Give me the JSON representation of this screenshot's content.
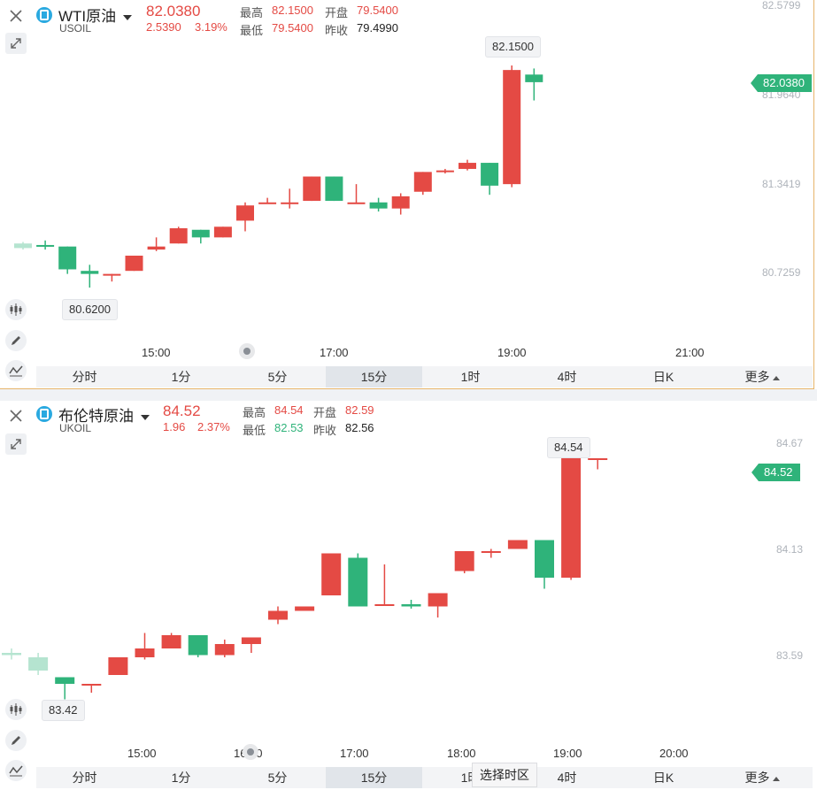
{
  "colors": {
    "up": "#e44a44",
    "down": "#2fb37a",
    "accent": "#2aa9e0"
  },
  "panels": [
    {
      "name": "WTI原油",
      "symbol": "USOIL",
      "price": "82.0380",
      "change": "2.5390",
      "change_pct": "3.19%",
      "stats": {
        "high_label": "最高",
        "high": "82.1500",
        "open_label": "开盘",
        "open": "79.5400",
        "low_label": "最低",
        "low": "79.5400",
        "prev_label": "昨收",
        "prev": "79.4990"
      },
      "y_ticks": [
        "82.5799",
        "81.9640",
        "81.3419",
        "80.7259"
      ],
      "x_ticks": [
        "15:00",
        "17:00",
        "19:00",
        "21:00"
      ],
      "current_badge": "82.0380",
      "max_callout": "82.1500",
      "min_callout": "80.6200",
      "chart_data": {
        "type": "candlestick",
        "y_range": [
          80.4,
          82.58
        ],
        "candles": [
          {
            "o": 80.98,
            "h": 80.99,
            "l": 80.94,
            "c": 80.95,
            "faded": true
          },
          {
            "o": 80.97,
            "h": 81.0,
            "l": 80.94,
            "c": 80.96
          },
          {
            "o": 80.96,
            "h": 80.96,
            "l": 80.78,
            "c": 80.81
          },
          {
            "o": 80.8,
            "h": 80.84,
            "l": 80.69,
            "c": 80.78
          },
          {
            "o": 80.78,
            "h": 80.78,
            "l": 80.73,
            "c": 80.78
          },
          {
            "o": 80.8,
            "h": 80.9,
            "l": 80.8,
            "c": 80.9
          },
          {
            "o": 80.94,
            "h": 81.02,
            "l": 80.93,
            "c": 80.96
          },
          {
            "o": 80.98,
            "h": 81.09,
            "l": 80.98,
            "c": 81.08
          },
          {
            "o": 81.07,
            "h": 81.07,
            "l": 80.98,
            "c": 81.02
          },
          {
            "o": 81.02,
            "h": 81.09,
            "l": 81.02,
            "c": 81.09
          },
          {
            "o": 81.13,
            "h": 81.25,
            "l": 81.06,
            "c": 81.23
          },
          {
            "o": 81.24,
            "h": 81.28,
            "l": 81.24,
            "c": 81.25
          },
          {
            "o": 81.25,
            "h": 81.34,
            "l": 81.21,
            "c": 81.25
          },
          {
            "o": 81.26,
            "h": 81.42,
            "l": 81.26,
            "c": 81.42
          },
          {
            "o": 81.42,
            "h": 81.42,
            "l": 81.26,
            "c": 81.26
          },
          {
            "o": 81.25,
            "h": 81.37,
            "l": 81.24,
            "c": 81.25
          },
          {
            "o": 81.25,
            "h": 81.28,
            "l": 81.19,
            "c": 81.21
          },
          {
            "o": 81.21,
            "h": 81.31,
            "l": 81.17,
            "c": 81.29
          },
          {
            "o": 81.32,
            "h": 81.45,
            "l": 81.3,
            "c": 81.45
          },
          {
            "o": 81.45,
            "h": 81.47,
            "l": 81.44,
            "c": 81.46
          },
          {
            "o": 81.47,
            "h": 81.53,
            "l": 81.46,
            "c": 81.51
          },
          {
            "o": 81.51,
            "h": 81.51,
            "l": 81.3,
            "c": 81.36
          },
          {
            "o": 81.37,
            "h": 82.15,
            "l": 81.35,
            "c": 82.12
          },
          {
            "o": 82.09,
            "h": 82.13,
            "l": 81.92,
            "c": 82.04
          }
        ]
      },
      "tabs": [
        "分时",
        "1分",
        "5分",
        "15分",
        "1时",
        "4时",
        "日K",
        "更多"
      ],
      "active_tab": 3
    },
    {
      "name": "布伦特原油",
      "symbol": "UKOIL",
      "price": "84.52",
      "change": "1.96",
      "change_pct": "2.37%",
      "stats": {
        "high_label": "最高",
        "high": "84.54",
        "open_label": "开盘",
        "open": "82.59",
        "low_label": "最低",
        "low": "82.53",
        "prev_label": "昨收",
        "prev": "82.56"
      },
      "y_ticks": [
        "84.67",
        "84.13",
        "83.59"
      ],
      "x_ticks": [
        "15:00",
        "16:00",
        "17:00",
        "18:00",
        "19:00",
        "20:00"
      ],
      "current_badge": "84.52",
      "max_callout": "84.54",
      "min_callout": "83.42",
      "chart_data": {
        "type": "candlestick",
        "y_range": [
          83.3,
          84.74
        ],
        "candles": [
          {
            "o": 83.64,
            "h": 83.66,
            "l": 83.61,
            "c": 83.63,
            "faded": true
          },
          {
            "o": 83.62,
            "h": 83.64,
            "l": 83.54,
            "c": 83.56,
            "faded": true
          },
          {
            "o": 83.53,
            "h": 83.53,
            "l": 83.43,
            "c": 83.5
          },
          {
            "o": 83.5,
            "h": 83.5,
            "l": 83.46,
            "c": 83.5
          },
          {
            "o": 83.54,
            "h": 83.62,
            "l": 83.54,
            "c": 83.62
          },
          {
            "o": 83.62,
            "h": 83.73,
            "l": 83.61,
            "c": 83.66
          },
          {
            "o": 83.66,
            "h": 83.73,
            "l": 83.66,
            "c": 83.72
          },
          {
            "o": 83.72,
            "h": 83.72,
            "l": 83.62,
            "c": 83.63
          },
          {
            "o": 83.63,
            "h": 83.7,
            "l": 83.62,
            "c": 83.68
          },
          {
            "o": 83.68,
            "h": 83.71,
            "l": 83.64,
            "c": 83.71
          },
          {
            "o": 83.79,
            "h": 83.85,
            "l": 83.77,
            "c": 83.83
          },
          {
            "o": 83.83,
            "h": 83.85,
            "l": 83.83,
            "c": 83.85
          },
          {
            "o": 83.9,
            "h": 84.09,
            "l": 83.9,
            "c": 84.09
          },
          {
            "o": 84.07,
            "h": 84.09,
            "l": 83.85,
            "c": 83.85
          },
          {
            "o": 83.86,
            "h": 84.04,
            "l": 83.86,
            "c": 83.86
          },
          {
            "o": 83.86,
            "h": 83.88,
            "l": 83.84,
            "c": 83.85
          },
          {
            "o": 83.85,
            "h": 83.9,
            "l": 83.8,
            "c": 83.91
          },
          {
            "o": 84.01,
            "h": 84.1,
            "l": 84.0,
            "c": 84.1
          },
          {
            "o": 84.1,
            "h": 84.11,
            "l": 84.07,
            "c": 84.1
          },
          {
            "o": 84.11,
            "h": 84.15,
            "l": 84.11,
            "c": 84.15
          },
          {
            "o": 84.15,
            "h": 84.15,
            "l": 83.93,
            "c": 83.98
          },
          {
            "o": 83.98,
            "h": 84.54,
            "l": 83.97,
            "c": 84.52
          },
          {
            "o": 84.52,
            "h": 84.52,
            "l": 84.47,
            "c": 84.52
          }
        ]
      },
      "tabs": [
        "分时",
        "1分",
        "5分",
        "15分",
        "1时",
        "4时",
        "日K",
        "更多"
      ],
      "active_tab": 3
    }
  ],
  "tooltip": "选择时区"
}
